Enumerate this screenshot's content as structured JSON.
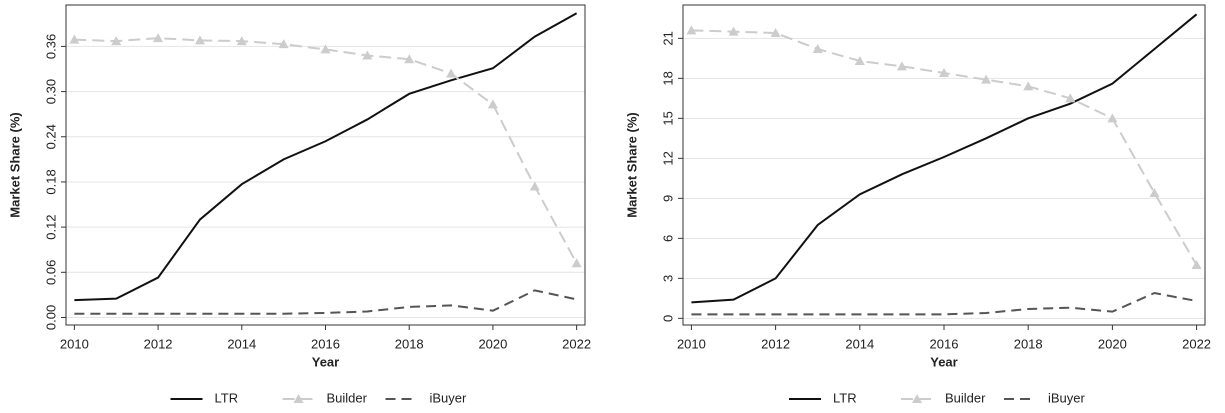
{
  "chart_data": [
    {
      "type": "line",
      "xlabel": "Year",
      "ylabel": "Market Share (%)",
      "x": [
        2010,
        2011,
        2012,
        2013,
        2014,
        2015,
        2016,
        2017,
        2018,
        2019,
        2020,
        2021,
        2022
      ],
      "xlim": [
        2009.8,
        2022.2
      ],
      "xticks": [
        2010,
        2012,
        2014,
        2016,
        2018,
        2020,
        2022
      ],
      "ylim": [
        -0.01,
        0.415
      ],
      "yticks": [
        {
          "value": 0,
          "label": "0.00"
        },
        {
          "value": 0.06,
          "label": "0.06"
        },
        {
          "value": 0.12,
          "label": "0.12"
        },
        {
          "value": 0.18,
          "label": "0.18"
        },
        {
          "value": 0.24,
          "label": "0.24"
        },
        {
          "value": 0.3,
          "label": "0.30"
        },
        {
          "value": 0.36,
          "label": "0.36"
        }
      ],
      "grid": true,
      "series": [
        {
          "name": "LTR",
          "color": "#111111",
          "dash": "solid",
          "values": [
            0.023,
            0.025,
            0.053,
            0.13,
            0.177,
            0.21,
            0.234,
            0.263,
            0.297,
            0.315,
            0.331,
            0.373,
            0.404
          ]
        },
        {
          "name": "Builder",
          "color": "#cccccc",
          "dash": "dashed",
          "marker": "triangle",
          "values": [
            0.369,
            0.367,
            0.371,
            0.368,
            0.367,
            0.363,
            0.356,
            0.348,
            0.343,
            0.324,
            0.283,
            0.174,
            0.072
          ]
        },
        {
          "name": "iBuyer",
          "color": "#555555",
          "dash": "longdash",
          "values": [
            0.005,
            0.005,
            0.005,
            0.005,
            0.005,
            0.005,
            0.006,
            0.008,
            0.014,
            0.016,
            0.009,
            0.036,
            0.024
          ]
        }
      ]
    },
    {
      "type": "line",
      "xlabel": "Year",
      "ylabel": "Market Share (%)",
      "x": [
        2010,
        2011,
        2012,
        2013,
        2014,
        2015,
        2016,
        2017,
        2018,
        2019,
        2020,
        2021,
        2022
      ],
      "xlim": [
        2009.8,
        2022.2
      ],
      "xticks": [
        2010,
        2012,
        2014,
        2016,
        2018,
        2020,
        2022
      ],
      "ylim": [
        -0.5,
        23.5
      ],
      "yticks": [
        0,
        3,
        6,
        9,
        12,
        15,
        18,
        21
      ],
      "grid": true,
      "series": [
        {
          "name": "LTR",
          "color": "#111111",
          "dash": "solid",
          "values": [
            1.2,
            1.4,
            3.0,
            7.0,
            9.3,
            10.8,
            12.1,
            13.5,
            15.0,
            16.1,
            17.6,
            20.2,
            22.8
          ]
        },
        {
          "name": "Builder",
          "color": "#cccccc",
          "dash": "dashed",
          "marker": "triangle",
          "values": [
            21.6,
            21.5,
            21.4,
            20.2,
            19.3,
            18.9,
            18.4,
            17.9,
            17.4,
            16.5,
            15.0,
            9.4,
            4.0
          ]
        },
        {
          "name": "iBuyer",
          "color": "#555555",
          "dash": "longdash",
          "values": [
            0.3,
            0.3,
            0.3,
            0.3,
            0.3,
            0.3,
            0.3,
            0.4,
            0.7,
            0.8,
            0.5,
            1.9,
            1.3
          ]
        }
      ]
    }
  ]
}
